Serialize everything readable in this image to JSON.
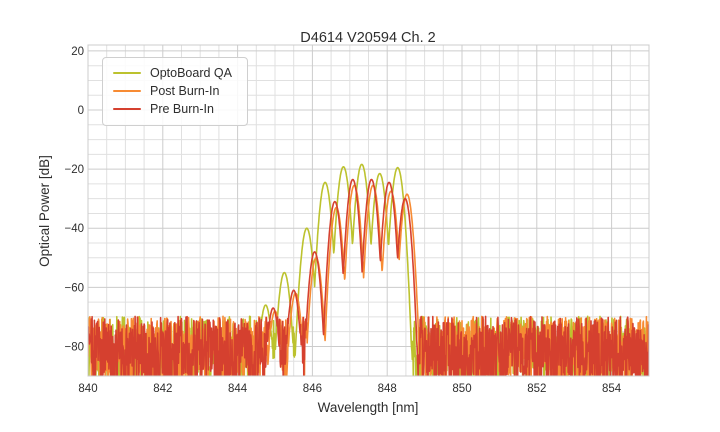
{
  "figure": {
    "background": "#ffffff"
  },
  "chart_data": {
    "type": "line",
    "title": "D4614 V20594 Ch. 2",
    "xlabel": "Wavelength [nm]",
    "ylabel": "Optical Power [dB]",
    "xlim": [
      840,
      855
    ],
    "ylim": [
      -90,
      22
    ],
    "xticks": [
      840,
      842,
      844,
      846,
      848,
      850,
      852,
      854
    ],
    "xtick_labels": [
      "840",
      "842",
      "844",
      "846",
      "848",
      "850",
      "852",
      "854"
    ],
    "yticks": [
      20,
      0,
      -20,
      -40,
      -60,
      -80
    ],
    "ytick_labels": [
      "20",
      "0",
      "−20",
      "−40",
      "−60",
      "−80"
    ],
    "grid": {
      "on": true,
      "minor_x_step": 0.5,
      "minor_y_step": 5,
      "minor_color": "#e0e0e0",
      "major_color": "#cccccc"
    },
    "frame_color": "#cccccc",
    "text_color": "#2e2e2e",
    "legend": {
      "position": "upper left"
    },
    "noise_floor": {
      "top_db": -69.8,
      "bottom_db": -94,
      "note": "broadband noise floor outside the ~844.5-848.8 nm emission band; clipped at plot bottom"
    },
    "series": [
      {
        "name": "OptoBoard QA",
        "color": "#bcc22e",
        "seed": 7,
        "mode_sharpness": 450,
        "modes": [
          [
            844.75,
            -66
          ],
          [
            845.25,
            -55
          ],
          [
            845.85,
            -40
          ],
          [
            846.34,
            -24.5
          ],
          [
            846.83,
            -19.2
          ],
          [
            847.32,
            -18.4
          ],
          [
            847.8,
            -21.5
          ],
          [
            848.28,
            -19.5
          ]
        ]
      },
      {
        "name": "Post Burn-In",
        "color": "#f78b33",
        "seed": 13,
        "mode_sharpness": 500,
        "modes": [
          [
            845.0,
            -68
          ],
          [
            845.55,
            -62
          ],
          [
            846.1,
            -50
          ],
          [
            846.64,
            -33
          ],
          [
            847.12,
            -25.5
          ],
          [
            847.62,
            -25.5
          ],
          [
            848.1,
            -27.5
          ],
          [
            848.53,
            -28.5
          ]
        ]
      },
      {
        "name": "Pre Burn-In",
        "color": "#d5402f",
        "seed": 29,
        "mode_sharpness": 500,
        "modes": [
          [
            844.95,
            -67
          ],
          [
            845.5,
            -61
          ],
          [
            846.06,
            -48
          ],
          [
            846.6,
            -31
          ],
          [
            847.08,
            -23.5
          ],
          [
            847.58,
            -23.5
          ],
          [
            848.05,
            -24.5
          ],
          [
            848.48,
            -30
          ]
        ]
      }
    ]
  }
}
